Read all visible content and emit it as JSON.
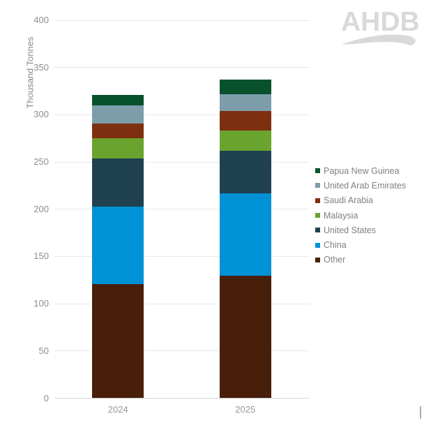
{
  "logo": {
    "text": "AHDB"
  },
  "chart_data": {
    "type": "bar",
    "stacked": true,
    "title": "",
    "xlabel": "",
    "ylabel": "Thousand Tonnes",
    "categories": [
      "2024",
      "2025"
    ],
    "series": [
      {
        "name": "Papua New Guinea",
        "color": "#07522c",
        "values": [
          11,
          15
        ]
      },
      {
        "name": "United Arab Emirates",
        "color": "#7d9daa",
        "values": [
          19,
          18
        ]
      },
      {
        "name": "Saudi Arabia",
        "color": "#7e2f10",
        "values": [
          16,
          21
        ]
      },
      {
        "name": "Malaysia",
        "color": "#6ba32f",
        "values": [
          21,
          21
        ]
      },
      {
        "name": "United States",
        "color": "#20414f",
        "values": [
          51,
          45
        ]
      },
      {
        "name": "China",
        "color": "#0091d6",
        "values": [
          82,
          87
        ]
      },
      {
        "name": "Other",
        "color": "#471f0b",
        "values": [
          121,
          130
        ]
      }
    ],
    "totals": [
      321,
      337
    ],
    "ylim": [
      0,
      400
    ],
    "yticks": [
      0,
      50,
      100,
      150,
      200,
      250,
      300,
      350,
      400
    ],
    "grid": true,
    "legend_position": "right",
    "stack_order_note": "legend order top-to-bottom equals stack order top-to-bottom"
  },
  "style_colors": {
    "gridline": "#e9e9e9",
    "axis_line": "#d6d6d6",
    "tick_text": "#8e8e8e",
    "legend_text": "#808080",
    "logo": "#d9d9d9"
  }
}
